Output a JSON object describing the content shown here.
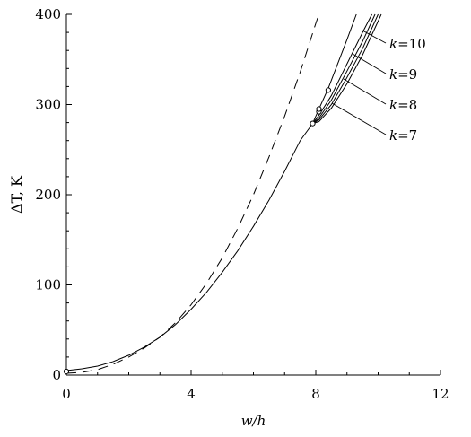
{
  "chart_data": {
    "type": "line",
    "title": "",
    "xlabel": "w/h",
    "ylabel": "ΔT, K",
    "xlim": [
      0,
      12
    ],
    "ylim": [
      0,
      400
    ],
    "x_ticks": [
      0,
      4,
      8,
      12
    ],
    "y_ticks": [
      0,
      100,
      200,
      300,
      400
    ],
    "grid": false,
    "legend": "none",
    "series": [
      {
        "style": "dashed",
        "x": [
          0,
          0.5,
          1,
          1.5,
          2,
          2.5,
          3,
          3.5,
          4,
          4.5,
          5,
          5.5,
          6,
          6.5,
          7,
          7.5,
          8,
          8.1
        ],
        "values": [
          2,
          3,
          6,
          12,
          20,
          30,
          42,
          58,
          78,
          102,
          130,
          163,
          200,
          242,
          287,
          336,
          390,
          400
        ]
      },
      {
        "style": "solid",
        "x": [
          0,
          0.5,
          1,
          1.5,
          2,
          2.5,
          3,
          3.5,
          4,
          4.5,
          5,
          5.5,
          6,
          6.5,
          7,
          7.5,
          7.9
        ],
        "values": [
          5,
          7,
          10,
          15,
          22,
          31,
          42,
          56,
          73,
          92,
          114,
          138,
          165,
          194,
          226,
          260,
          279
        ]
      },
      {
        "style": "solid",
        "x": [
          7.9,
          8.1,
          8.4,
          8.7,
          9.0,
          9.3
        ],
        "values": [
          279,
          295,
          318,
          345,
          372,
          400
        ]
      },
      {
        "style": "solid",
        "x": [
          7.9,
          8.1,
          8.5,
          9.0,
          9.5,
          9.8
        ],
        "values": [
          279,
          288,
          310,
          345,
          380,
          400
        ]
      },
      {
        "style": "solid",
        "x": [
          7.9,
          8.1,
          8.5,
          9.0,
          9.5,
          9.9
        ],
        "values": [
          279,
          285,
          305,
          337,
          370,
          400
        ]
      },
      {
        "style": "solid",
        "x": [
          7.9,
          8.1,
          8.5,
          9.0,
          9.5,
          10.0
        ],
        "values": [
          279,
          283,
          300,
          330,
          362,
          400
        ]
      },
      {
        "style": "solid",
        "x": [
          7.9,
          8.1,
          8.5,
          9.0,
          9.5,
          10.1
        ],
        "values": [
          279,
          281,
          296,
          323,
          355,
          400
        ]
      }
    ],
    "markers": [
      {
        "x": 7.9,
        "y": 279
      },
      {
        "x": 8.1,
        "y": 292
      },
      {
        "x": 8.1,
        "y": 295
      },
      {
        "x": 8.4,
        "y": 316
      },
      {
        "x": 0,
        "y": 4
      }
    ],
    "annotations": [
      {
        "var": "k",
        "value": "=10"
      },
      {
        "var": "k",
        "value": "=9"
      },
      {
        "var": "k",
        "value": "=8"
      },
      {
        "var": "k",
        "value": "=7"
      }
    ]
  }
}
